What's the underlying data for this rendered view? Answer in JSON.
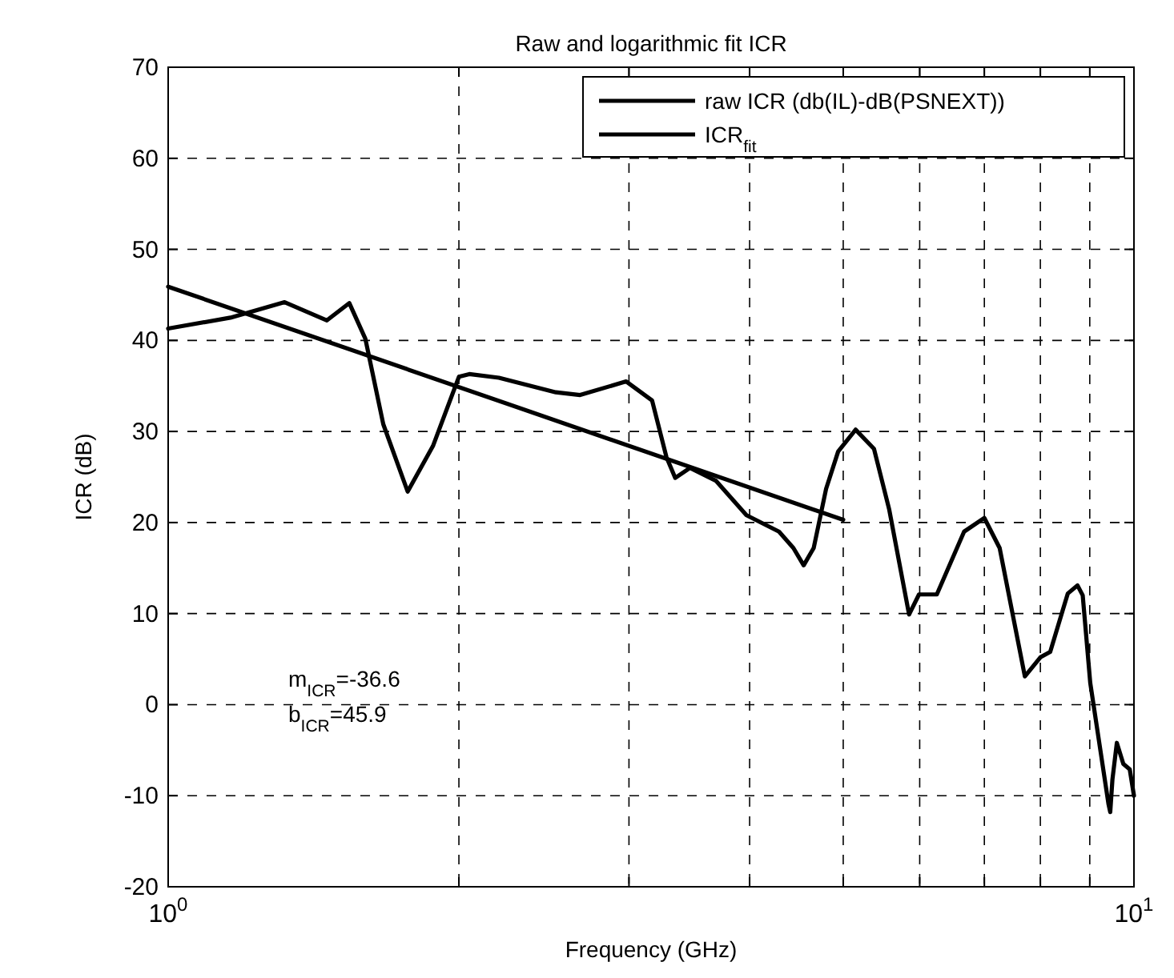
{
  "chart_data": {
    "type": "line",
    "title": "Raw and logarithmic fit ICR",
    "xlabel": "Frequency (GHz)",
    "ylabel": "ICR (dB)",
    "log": "x",
    "grid": true,
    "legend": "top right",
    "line_style": "solid",
    "xlim": [
      1,
      10
    ],
    "xticks": [
      {
        "value": 1,
        "label": "10$^{0}$"
      },
      {
        "value": 2,
        "label": null
      },
      {
        "value": 3,
        "label": null
      },
      {
        "value": 4,
        "label": null
      },
      {
        "value": 5,
        "label": null
      },
      {
        "value": 6,
        "label": null
      },
      {
        "value": 7,
        "label": null
      },
      {
        "value": 8,
        "label": null
      },
      {
        "value": 9,
        "label": null
      },
      {
        "value": 10,
        "label": "10$^{1}$"
      }
    ],
    "ylim": [
      -20,
      70
    ],
    "yticks": [
      -20,
      -10,
      0,
      10,
      20,
      30,
      40,
      50,
      60,
      70
    ],
    "series": [
      {
        "name": "raw ICR (db(IL)-dB(PSNEXT))",
        "color": "#000000",
        "x": [
          1,
          1.16,
          1.32,
          1.46,
          1.54,
          1.6,
          1.67,
          1.77,
          1.88,
          2,
          2.05,
          2.2,
          2.52,
          2.67,
          2.98,
          3.17,
          3.28,
          3.35,
          3.47,
          3.69,
          3.97,
          4.29,
          4.44,
          4.55,
          4.66,
          4.8,
          4.94,
          5.15,
          5.38,
          5.58,
          5.85,
          5.99,
          6.25,
          6.67,
          7,
          7.26,
          7.71,
          8,
          8.19,
          8.54,
          8.74,
          8.85,
          9.01,
          9.41,
          9.45,
          9.5,
          9.6,
          9.75,
          9.9,
          10
        ],
        "values": [
          41.3,
          42.5,
          44.2,
          42.2,
          44.1,
          40.2,
          30.8,
          23.4,
          28.4,
          36,
          36.3,
          35.9,
          34.3,
          34,
          35.5,
          33.4,
          27.2,
          24.9,
          26,
          24.6,
          20.8,
          19,
          17.2,
          15.3,
          17.2,
          23.7,
          27.8,
          30.2,
          28.1,
          21.4,
          9.9,
          12.1,
          12.1,
          19,
          20.5,
          17.2,
          3.1,
          5.2,
          5.8,
          12.2,
          13.1,
          12,
          2.4,
          -10.9,
          -11.8,
          -8.2,
          -4.2,
          -6.5,
          -7.1,
          -10
        ]
      },
      {
        "name": "ICR$_{fit}$",
        "color": "#000000",
        "x": [
          1,
          5
        ],
        "values": [
          45.9,
          20.3
        ]
      }
    ],
    "annotations": [
      "m$_{ICR}$=-36.6",
      "b$_{ICR}$=45.9"
    ]
  }
}
